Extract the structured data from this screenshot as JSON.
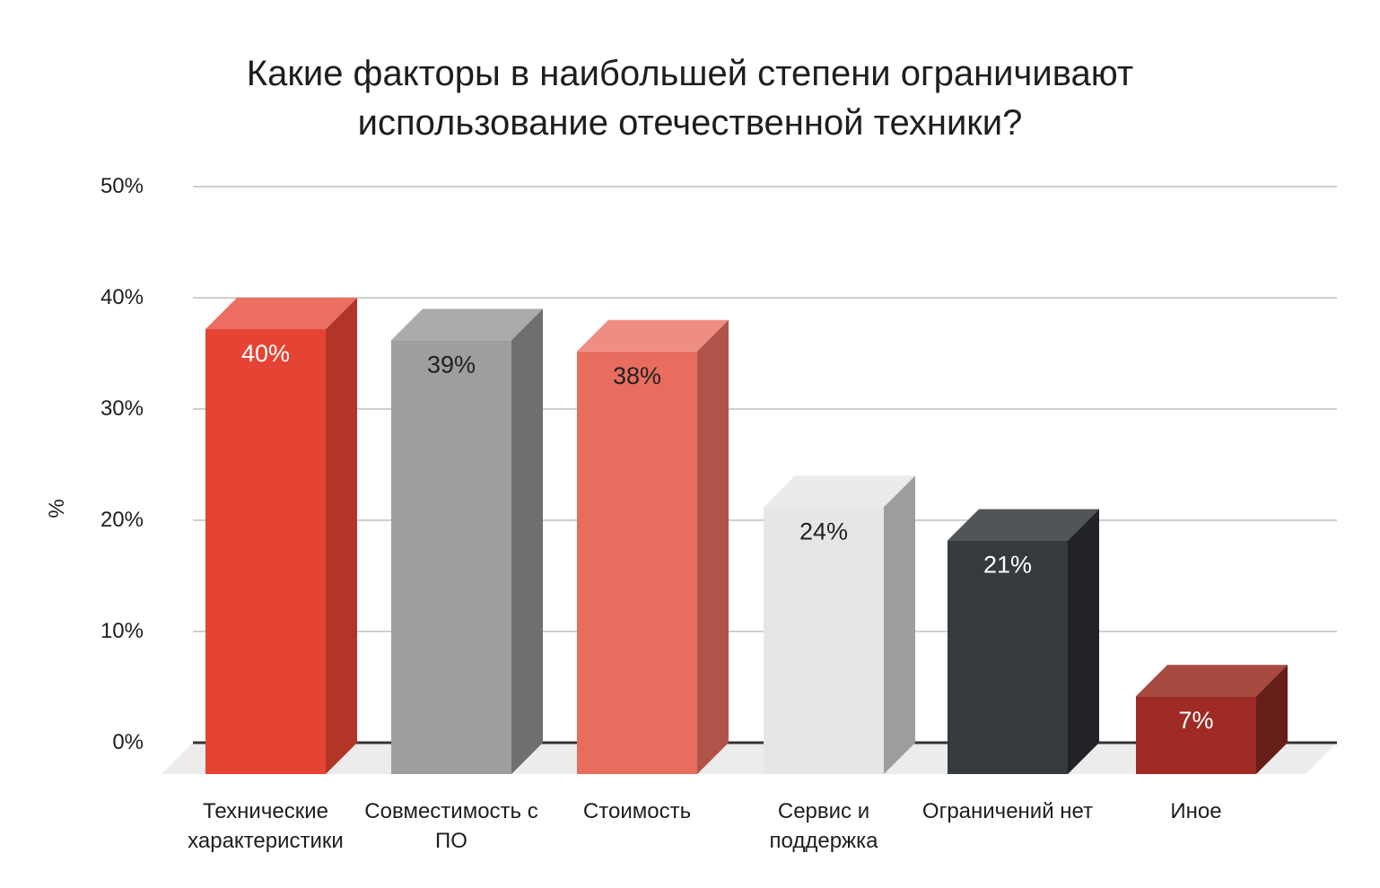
{
  "title": {
    "full": "Какие факторы в наибольшей степени ограничивают использование отечественной техники?",
    "lines": [
      "Какие факторы в наибольшей степени ограничивают",
      "использование отечественной техники?"
    ]
  },
  "chart_data": {
    "type": "bar",
    "projection": "3d-column",
    "title": "Какие факторы в наибольшей степени ограничивают использование отечественной техники?",
    "categories": [
      "Технические характеристики",
      "Совместимость с ПО",
      "Стоимость",
      "Сервис и поддержка",
      "Ограничений нет",
      "Иное"
    ],
    "values": [
      40,
      39,
      38,
      24,
      21,
      7
    ],
    "value_labels": [
      "40%",
      "39%",
      "38%",
      "24%",
      "21%",
      "7%"
    ],
    "xlabel": "",
    "ylabel": "%",
    "ylim": [
      0,
      50
    ],
    "ytick_values": [
      0,
      10,
      20,
      30,
      40,
      50
    ],
    "yticks": [
      "0%",
      "10%",
      "20%",
      "30%",
      "40%",
      "50%"
    ],
    "grid": true,
    "legend": "none",
    "bar_colors": [
      {
        "front": "#E54434",
        "top": "#EC6F61",
        "side": "#B23528",
        "value_label": "#FFFFFF"
      },
      {
        "front": "#9E9E9E",
        "top": "#ABABAB",
        "side": "#6F6F6F",
        "value_label": "#212121"
      },
      {
        "front": "#E96D5F",
        "top": "#EE8E83",
        "side": "#B0544A",
        "value_label": "#212121"
      },
      {
        "front": "#E8E6E4",
        "top": "#EDEBE9",
        "side": "#9E9D9C",
        "value_label": "#212121"
      },
      {
        "front": "#363A3E",
        "top": "#515559",
        "side": "#212326",
        "value_label": "#FFFFFF"
      },
      {
        "front": "#9E2B25",
        "top": "#A84A40",
        "side": "#661E18",
        "value_label": "#FFFFFF"
      }
    ],
    "colors": {
      "background": "#FFFFFF",
      "gridline": "#CFCFCF",
      "axis_line": "#333333",
      "floor": "#ECECEC",
      "text": "#1E1E1E"
    }
  }
}
